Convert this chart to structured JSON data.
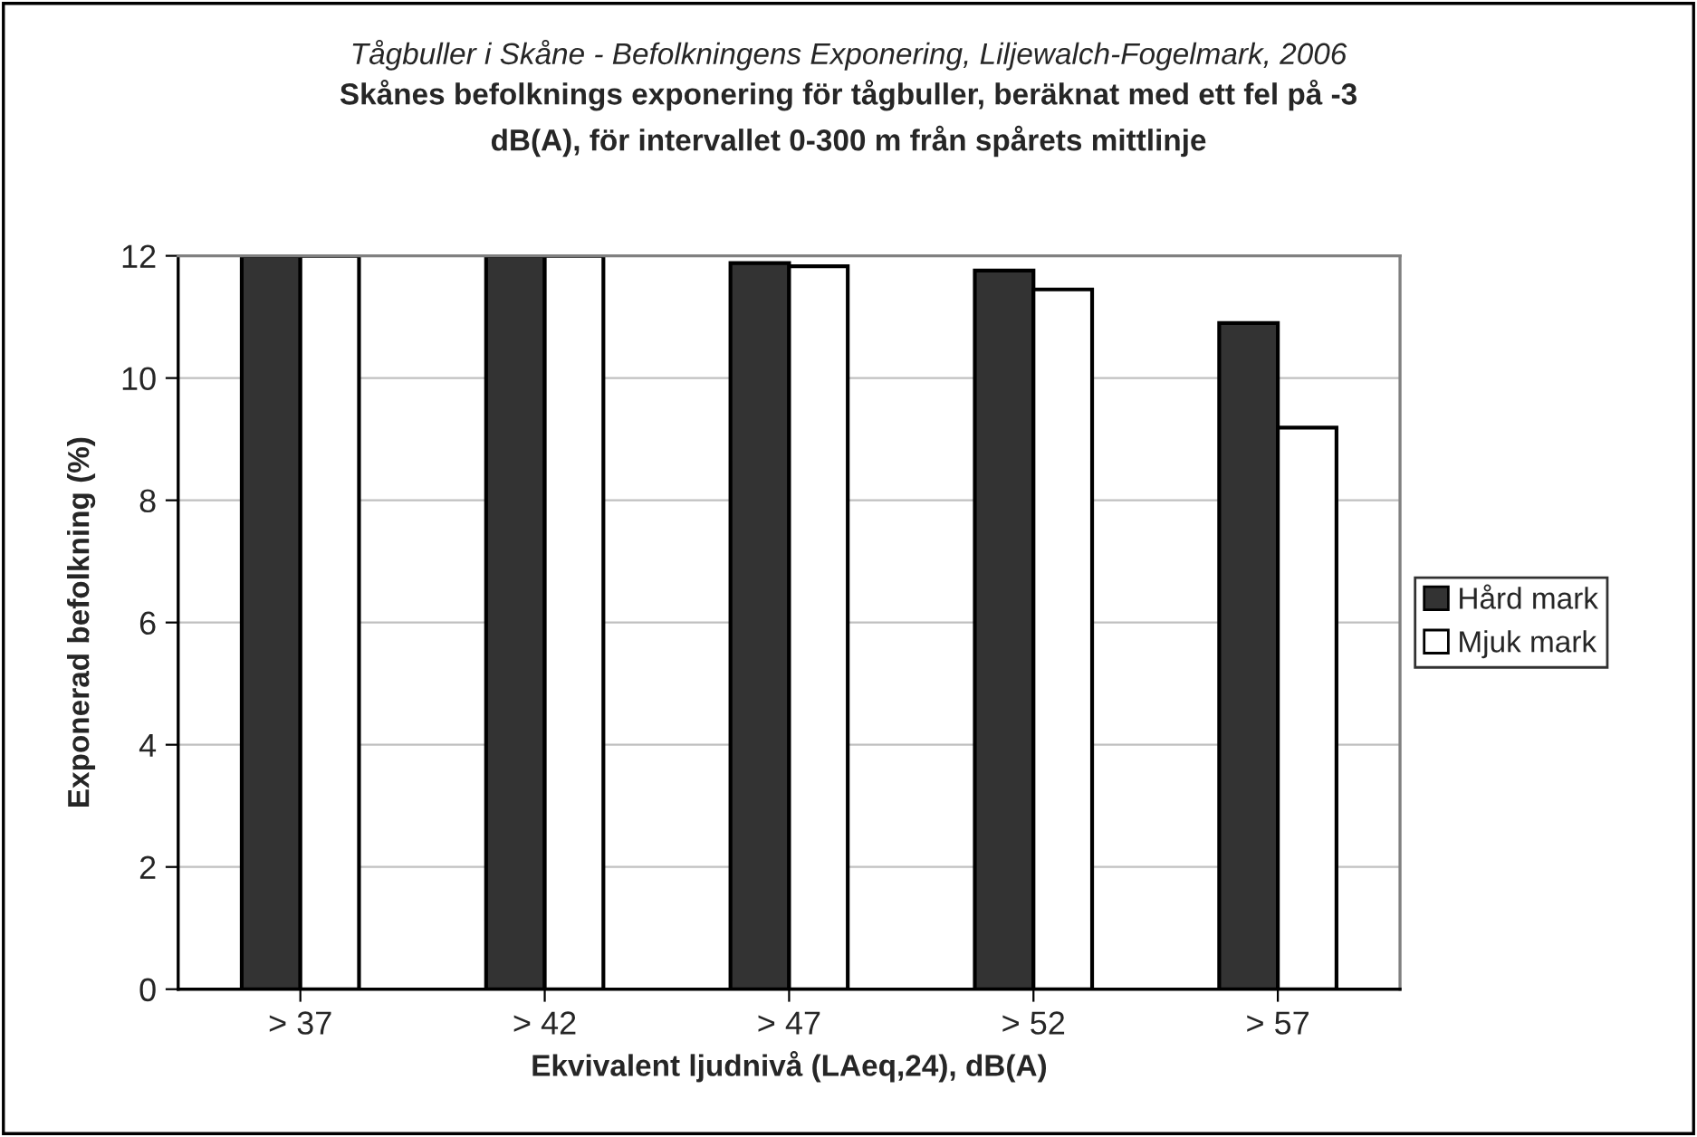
{
  "chart_data": {
    "type": "bar",
    "title": "Tågbuller i Skåne - Befolkningens Exponering, Liljewalch-Fogelmark, 2006",
    "subtitle": "Skånes befolknings exponering för tågbuller, beräknat med ett fel på -3\ndB(A), för intervallet 0-300 m från spårets mittlinje",
    "xlabel": "Ekvivalent ljudnivå (LAeq,24), dB(A)",
    "ylabel": "Exponerad befolkning (%)",
    "categories": [
      "> 37",
      "> 42",
      "> 47",
      "> 52",
      "> 57"
    ],
    "series": [
      {
        "name": "Hård mark",
        "color": "#333333",
        "values": [
          12,
          12,
          11.88,
          11.76,
          10.9
        ]
      },
      {
        "name": "Mjuk mark",
        "color": "#ffffff",
        "values": [
          12,
          12,
          11.83,
          11.45,
          9.19
        ]
      }
    ],
    "ylim": [
      0,
      12
    ],
    "yticks": [
      0,
      2,
      4,
      6,
      8,
      10,
      12
    ],
    "grid": "y",
    "legend": "right"
  }
}
